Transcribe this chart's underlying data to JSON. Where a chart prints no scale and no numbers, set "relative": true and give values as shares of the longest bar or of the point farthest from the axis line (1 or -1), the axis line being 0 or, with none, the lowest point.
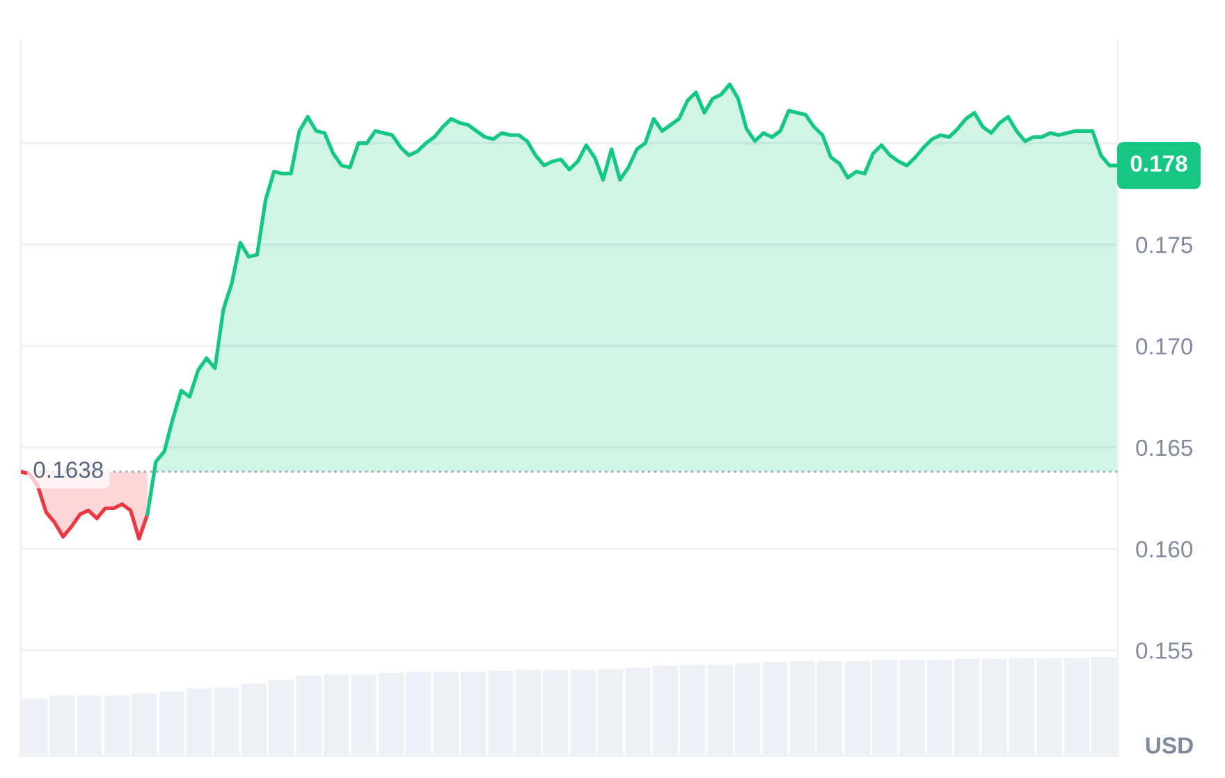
{
  "chart_data": [
    {
      "type": "line",
      "categories": [
        null,
        null,
        null,
        null,
        null,
        null,
        null,
        null,
        null,
        null,
        null,
        null,
        null,
        null,
        null,
        null,
        null,
        null,
        null,
        null,
        null,
        null,
        null,
        null,
        null,
        null,
        null,
        null,
        null,
        null,
        null,
        null,
        null,
        null,
        null,
        null,
        null,
        null,
        null,
        null,
        null,
        null,
        null,
        null,
        null,
        null,
        null,
        null,
        null,
        null,
        null,
        null,
        null,
        null,
        null,
        null,
        null,
        null,
        null,
        null,
        null,
        null,
        null,
        null,
        null,
        null,
        null,
        null,
        null,
        null,
        null,
        null,
        null,
        null,
        null,
        null,
        null,
        null,
        null,
        null,
        null,
        null,
        null,
        null,
        null,
        null,
        null,
        null,
        null,
        null,
        null,
        null,
        null,
        null,
        null,
        null,
        null,
        null,
        null,
        null,
        null,
        null,
        null,
        null,
        null,
        null,
        null,
        null,
        null,
        null,
        null,
        null,
        null,
        null,
        null,
        null,
        null,
        null,
        null,
        null,
        null,
        null,
        null,
        null,
        null,
        null,
        null,
        null,
        null,
        null,
        null
      ],
      "series": [
        {
          "color": "#ea3943",
          "values": [
            0.1638,
            0.1637,
            0.1631,
            0.1618,
            0.1613,
            0.1606,
            0.1611,
            0.1617,
            0.1619,
            0.1615,
            0.162,
            0.162,
            0.1622,
            0.1619,
            0.1605,
            0.1617,
            null,
            null,
            null,
            null,
            null,
            null,
            null,
            null,
            null,
            null,
            null,
            null,
            null,
            null,
            null,
            null,
            null,
            null,
            null,
            null,
            null,
            null,
            null,
            null,
            null,
            null,
            null,
            null,
            null,
            null,
            null,
            null,
            null,
            null,
            null,
            null,
            null,
            null,
            null,
            null,
            null,
            null,
            null,
            null,
            null,
            null,
            null,
            null,
            null,
            null,
            null,
            null,
            null,
            null,
            null,
            null,
            null,
            null,
            null,
            null,
            null,
            null,
            null,
            null,
            null,
            null,
            null,
            null,
            null,
            null,
            null,
            null,
            null,
            null,
            null,
            null,
            null,
            null,
            null,
            null,
            null,
            null,
            null,
            null,
            null,
            null,
            null,
            null,
            null,
            null,
            null,
            null,
            null,
            null,
            null,
            null,
            null,
            null,
            null,
            null,
            null,
            null,
            null,
            null,
            null,
            null,
            null,
            null,
            null,
            null,
            null,
            null,
            null,
            null,
            null
          ],
          "lower": [
            0.1638,
            0.1637,
            0.1631,
            0.1618,
            0.1613,
            0.1606,
            0.1611,
            0.1617,
            0.1619,
            0.1615,
            0.162,
            0.162,
            0.1622,
            0.1619,
            0.1605,
            0.1617,
            null,
            null,
            null,
            null,
            null,
            null,
            null,
            null,
            null,
            null,
            null,
            null,
            null,
            null,
            null,
            null,
            null,
            null,
            null,
            null,
            null,
            null,
            null,
            null,
            null,
            null,
            null,
            null,
            null,
            null,
            null,
            null,
            null,
            null,
            null,
            null,
            null,
            null,
            null,
            null,
            null,
            null,
            null,
            null,
            null,
            null,
            null,
            null,
            null,
            null,
            null,
            null,
            null,
            null,
            null,
            null,
            null,
            null,
            null,
            null,
            null,
            null,
            null,
            null,
            null,
            null,
            null,
            null,
            null,
            null,
            null,
            null,
            null,
            null,
            null,
            null,
            null,
            null,
            null,
            null,
            null,
            null,
            null,
            null,
            null,
            null,
            null,
            null,
            null,
            null,
            null,
            null,
            null,
            null,
            null,
            null,
            null,
            null,
            null,
            null,
            null,
            null,
            null,
            null,
            null,
            null,
            null,
            null,
            null,
            null,
            null,
            null,
            null,
            null,
            null
          ],
          "upper": [
            0.1638,
            0.1638,
            0.1638,
            0.1638,
            0.1638,
            0.1638,
            0.1638,
            0.1638,
            0.1638,
            0.1638,
            0.1638,
            0.1638,
            0.1638,
            0.1638,
            0.1638,
            0.1638,
            null,
            null,
            null,
            null,
            null,
            null,
            null,
            null,
            null,
            null,
            null,
            null,
            null,
            null,
            null,
            null,
            null,
            null,
            null,
            null,
            null,
            null,
            null,
            null,
            null,
            null,
            null,
            null,
            null,
            null,
            null,
            null,
            null,
            null,
            null,
            null,
            null,
            null,
            null,
            null,
            null,
            null,
            null,
            null,
            null,
            null,
            null,
            null,
            null,
            null,
            null,
            null,
            null,
            null,
            null,
            null,
            null,
            null,
            null,
            null,
            null,
            null,
            null,
            null,
            null,
            null,
            null,
            null,
            null,
            null,
            null,
            null,
            null,
            null,
            null,
            null,
            null,
            null,
            null,
            null,
            null,
            null,
            null,
            null,
            null,
            null,
            null,
            null,
            null,
            null,
            null,
            null,
            null,
            null,
            null,
            null,
            null,
            null,
            null,
            null,
            null,
            null,
            null,
            null,
            null,
            null,
            null,
            null,
            null,
            null,
            null,
            null,
            null,
            null,
            null
          ]
        },
        {
          "color": "#16c784",
          "values": [
            null,
            null,
            null,
            null,
            null,
            null,
            null,
            null,
            null,
            null,
            null,
            null,
            null,
            null,
            null,
            0.1617,
            0.1643,
            0.1648,
            0.1664,
            0.1678,
            0.1675,
            0.1688,
            0.1694,
            0.1689,
            0.1718,
            0.1731,
            0.1751,
            0.1744,
            0.1745,
            0.1772,
            0.1786,
            0.1785,
            0.1785,
            0.1806,
            0.1813,
            0.1806,
            0.1805,
            0.1795,
            0.1789,
            0.1788,
            0.18,
            0.18,
            0.1806,
            0.1805,
            0.1804,
            0.1798,
            0.1794,
            0.1796,
            0.18,
            0.1803,
            0.1808,
            0.1812,
            0.181,
            0.1809,
            0.1806,
            0.1803,
            0.1802,
            0.1805,
            0.1804,
            0.1804,
            0.1801,
            0.1794,
            0.1789,
            0.1791,
            0.1792,
            0.1787,
            0.1791,
            0.1799,
            0.1793,
            0.1782,
            0.1797,
            0.1782,
            0.1788,
            0.1797,
            0.18,
            0.1812,
            0.1806,
            0.1809,
            0.1812,
            0.1821,
            0.1825,
            0.1815,
            0.1822,
            0.1824,
            0.1829,
            0.1822,
            0.1807,
            0.1801,
            0.1805,
            0.1803,
            0.1806,
            0.1816,
            0.1815,
            0.1814,
            0.1808,
            0.1804,
            0.1793,
            0.179,
            0.1783,
            0.1786,
            0.1785,
            0.1795,
            0.1799,
            0.1794,
            0.1791,
            0.1789,
            0.1793,
            0.1798,
            0.1802,
            0.1804,
            0.1803,
            0.1807,
            0.1812,
            0.1815,
            0.1808,
            0.1805,
            0.181,
            0.1813,
            0.1806,
            0.1801,
            0.1803,
            0.1803,
            0.1805,
            0.1804,
            0.1805,
            0.1806,
            0.1806,
            0.1806,
            0.1794,
            0.1789,
            0.1789
          ],
          "lower": [
            null,
            null,
            null,
            null,
            null,
            null,
            null,
            null,
            null,
            null,
            null,
            null,
            null,
            null,
            null,
            null,
            0.1638,
            0.1638,
            0.1638,
            0.1638,
            0.1638,
            0.1638,
            0.1638,
            0.1638,
            0.1638,
            0.1638,
            0.1638,
            0.1638,
            0.1638,
            0.1638,
            0.1638,
            0.1638,
            0.1638,
            0.1638,
            0.1638,
            0.1638,
            0.1638,
            0.1638,
            0.1638,
            0.1638,
            0.1638,
            0.1638,
            0.1638,
            0.1638,
            0.1638,
            0.1638,
            0.1638,
            0.1638,
            0.1638,
            0.1638,
            0.1638,
            0.1638,
            0.1638,
            0.1638,
            0.1638,
            0.1638,
            0.1638,
            0.1638,
            0.1638,
            0.1638,
            0.1638,
            0.1638,
            0.1638,
            0.1638,
            0.1638,
            0.1638,
            0.1638,
            0.1638,
            0.1638,
            0.1638,
            0.1638,
            0.1638,
            0.1638,
            0.1638,
            0.1638,
            0.1638,
            0.1638,
            0.1638,
            0.1638,
            0.1638,
            0.1638,
            0.1638,
            0.1638,
            0.1638,
            0.1638,
            0.1638,
            0.1638,
            0.1638,
            0.1638,
            0.1638,
            0.1638,
            0.1638,
            0.1638,
            0.1638,
            0.1638,
            0.1638,
            0.1638,
            0.1638,
            0.1638,
            0.1638,
            0.1638,
            0.1638,
            0.1638,
            0.1638,
            0.1638,
            0.1638,
            0.1638,
            0.1638,
            0.1638,
            0.1638,
            0.1638,
            0.1638,
            0.1638,
            0.1638,
            0.1638,
            0.1638,
            0.1638,
            0.1638,
            0.1638,
            0.1638,
            0.1638,
            0.1638,
            0.1638,
            0.1638,
            0.1638,
            0.1638,
            0.1638,
            0.1638,
            0.1638,
            0.1638,
            0.1638
          ],
          "upper": [
            null,
            null,
            null,
            null,
            null,
            null,
            null,
            null,
            null,
            null,
            null,
            null,
            null,
            null,
            null,
            null,
            0.1643,
            0.1648,
            0.1664,
            0.1678,
            0.1675,
            0.1688,
            0.1694,
            0.1689,
            0.1718,
            0.1731,
            0.1751,
            0.1744,
            0.1745,
            0.1772,
            0.1786,
            0.1785,
            0.1785,
            0.1806,
            0.1813,
            0.1806,
            0.1805,
            0.1795,
            0.1789,
            0.1788,
            0.18,
            0.18,
            0.1806,
            0.1805,
            0.1804,
            0.1798,
            0.1794,
            0.1796,
            0.18,
            0.1803,
            0.1808,
            0.1812,
            0.181,
            0.1809,
            0.1806,
            0.1803,
            0.1802,
            0.1805,
            0.1804,
            0.1804,
            0.1801,
            0.1794,
            0.1789,
            0.1791,
            0.1792,
            0.1787,
            0.1791,
            0.1799,
            0.1793,
            0.1782,
            0.1797,
            0.1782,
            0.1788,
            0.1797,
            0.18,
            0.1812,
            0.1806,
            0.1809,
            0.1812,
            0.1821,
            0.1825,
            0.1815,
            0.1822,
            0.1824,
            0.1829,
            0.1822,
            0.1807,
            0.1801,
            0.1805,
            0.1803,
            0.1806,
            0.1816,
            0.1815,
            0.1814,
            0.1808,
            0.1804,
            0.1793,
            0.179,
            0.1783,
            0.1786,
            0.1785,
            0.1795,
            0.1799,
            0.1794,
            0.1791,
            0.1789,
            0.1793,
            0.1798,
            0.1802,
            0.1804,
            0.1803,
            0.1807,
            0.1812,
            0.1815,
            0.1808,
            0.1805,
            0.181,
            0.1813,
            0.1806,
            0.1801,
            0.1803,
            0.1803,
            0.1805,
            0.1804,
            0.1805,
            0.1806,
            0.1806,
            0.1806,
            0.1794,
            0.1789,
            0.1789
          ]
        }
      ],
      "ylim": [
        0.1498,
        0.185
      ],
      "yticks": [
        0.155,
        {
          "value": 0.16,
          "label": "0.160"
        },
        0.165,
        {
          "value": 0.17,
          "label": "0.170"
        },
        0.175,
        {
          "value": 0.18,
          "label": null
        }
      ],
      "ylabel": "USD",
      "ref_lines": [
        {
          "axis": "y",
          "value": 0.1638,
          "label": "0.1638",
          "line_style": "dotted",
          "color": "#a6b0c3"
        }
      ],
      "annotations": [
        "0.178"
      ],
      "grid": "y",
      "tick_labels": "y",
      "marker": "none",
      "line_style": "solid"
    },
    {
      "type": "bar",
      "relative": true,
      "categories": [
        null,
        null,
        null,
        null,
        null,
        null,
        null,
        null,
        null,
        null,
        null,
        null,
        null,
        null,
        null,
        null,
        null,
        null,
        null,
        null,
        null,
        null,
        null,
        null,
        null,
        null,
        null,
        null,
        null,
        null,
        null,
        null,
        null,
        null,
        null,
        null,
        null,
        null,
        null,
        null
      ],
      "values": [
        0.58,
        0.61,
        0.61,
        0.61,
        0.63,
        0.65,
        0.68,
        0.69,
        0.73,
        0.77,
        0.81,
        0.82,
        0.82,
        0.84,
        0.85,
        0.85,
        0.85,
        0.86,
        0.87,
        0.87,
        0.87,
        0.88,
        0.89,
        0.91,
        0.92,
        0.92,
        0.94,
        0.95,
        0.96,
        0.96,
        0.96,
        0.97,
        0.97,
        0.97,
        0.98,
        0.98,
        0.99,
        0.99,
        0.99,
        1
      ],
      "color": "#edf0f4",
      "tick_labels": false
    }
  ]
}
